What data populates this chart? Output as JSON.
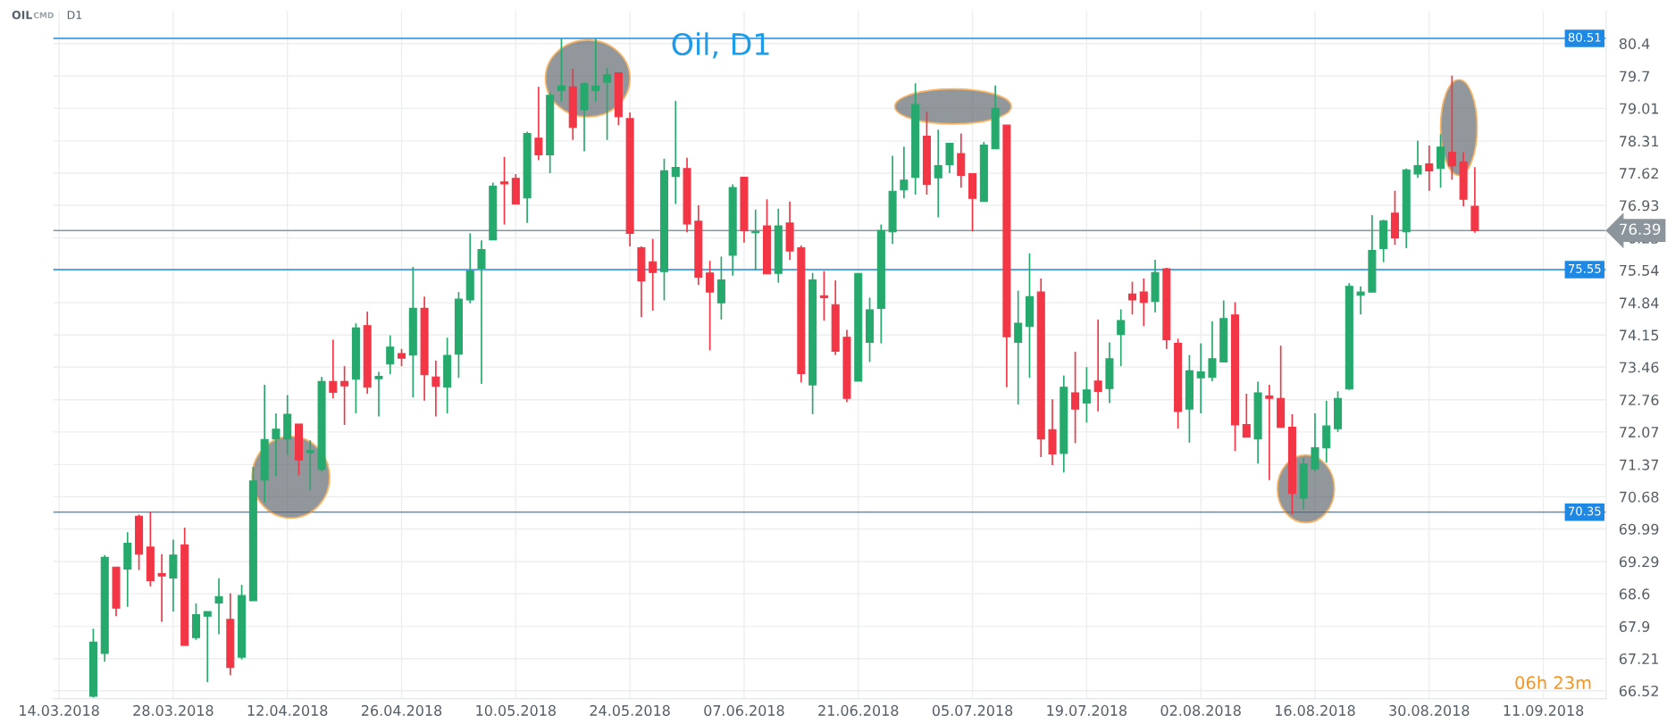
{
  "chart_data": {
    "type": "candlestick",
    "title": "Oil, D1",
    "annotations": [
      "OIL",
      "CMD",
      "D1",
      "06h 23m"
    ],
    "categories": [
      "14.03.2018",
      null,
      null,
      null,
      null,
      null,
      null,
      null,
      null,
      null,
      "28.03.2018",
      null,
      null,
      null,
      null,
      null,
      null,
      null,
      null,
      null,
      "12.04.2018",
      null,
      null,
      null,
      null,
      null,
      null,
      null,
      null,
      null,
      "26.04.2018",
      null,
      null,
      null,
      null,
      null,
      null,
      null,
      null,
      null,
      "10.05.2018",
      null,
      null,
      null,
      null,
      null,
      null,
      null,
      null,
      null,
      "24.05.2018",
      null,
      null,
      null,
      null,
      null,
      null,
      null,
      null,
      null,
      "07.06.2018",
      null,
      null,
      null,
      null,
      null,
      null,
      null,
      null,
      null,
      "21.06.2018",
      null,
      null,
      null,
      null,
      null,
      null,
      null,
      null,
      null,
      "05.07.2018",
      null,
      null,
      null,
      null,
      null,
      null,
      null,
      null,
      null,
      "19.07.2018",
      null,
      null,
      null,
      null,
      null,
      null,
      null,
      null,
      null,
      "02.08.2018",
      null,
      null,
      null,
      null,
      null,
      null,
      null,
      null,
      null,
      "16.08.2018",
      null,
      null,
      null,
      null,
      null,
      null,
      null,
      null,
      null,
      "30.08.2018",
      null,
      null,
      null,
      null,
      null,
      null,
      null,
      null,
      null,
      "11.09.2018",
      null,
      null,
      null,
      null,
      null
    ],
    "ohlc": [
      null,
      null,
      null,
      [
        66.4,
        67.85,
        66.37,
        67.56
      ],
      [
        67.32,
        69.43,
        67.14,
        69.38
      ],
      [
        69.17,
        69.17,
        68.12,
        68.29
      ],
      [
        69.13,
        69.92,
        68.32,
        69.68
      ],
      [
        70.26,
        70.3,
        69.11,
        69.45
      ],
      [
        69.6,
        70.36,
        68.76,
        68.88
      ],
      [
        69.03,
        69.45,
        68.0,
        68.98
      ],
      [
        68.94,
        69.76,
        68.22,
        69.43
      ],
      [
        69.65,
        70.02,
        67.49,
        67.49
      ],
      [
        67.66,
        68.39,
        67.61,
        68.15
      ],
      [
        68.12,
        68.22,
        66.7,
        68.22
      ],
      [
        68.4,
        68.93,
        67.73,
        68.54
      ],
      [
        68.05,
        68.61,
        66.85,
        67.02
      ],
      [
        67.24,
        68.79,
        67.19,
        68.56
      ],
      [
        68.45,
        71.32,
        68.45,
        71.02
      ],
      [
        71.04,
        73.08,
        70.56,
        71.91
      ],
      [
        71.92,
        72.47,
        71.12,
        72.13
      ],
      [
        71.92,
        72.86,
        71.58,
        72.45
      ],
      [
        72.24,
        72.24,
        71.14,
        71.47
      ],
      [
        71.63,
        71.89,
        70.82,
        71.67
      ],
      [
        71.27,
        73.25,
        71.22,
        73.15
      ],
      [
        73.15,
        74.05,
        72.79,
        72.92
      ],
      [
        73.15,
        73.48,
        72.22,
        73.06
      ],
      [
        73.2,
        74.4,
        72.47,
        74.3
      ],
      [
        74.35,
        74.65,
        72.89,
        73.03
      ],
      [
        73.21,
        73.36,
        72.4,
        73.26
      ],
      [
        73.53,
        74.14,
        73.31,
        73.89
      ],
      [
        73.75,
        73.85,
        73.48,
        73.65
      ],
      [
        73.72,
        75.61,
        72.81,
        74.72
      ],
      [
        74.72,
        74.97,
        72.74,
        73.3
      ],
      [
        73.25,
        73.6,
        72.4,
        73.05
      ],
      [
        73.03,
        74.09,
        72.47,
        73.71
      ],
      [
        73.74,
        75.07,
        73.23,
        74.92
      ],
      [
        74.9,
        76.33,
        74.83,
        75.52
      ],
      [
        75.58,
        76.18,
        73.1,
        75.98
      ],
      [
        76.19,
        77.42,
        76.19,
        77.34
      ],
      [
        77.43,
        77.97,
        76.52,
        77.39
      ],
      [
        77.51,
        77.6,
        76.96,
        76.96
      ],
      [
        77.09,
        78.51,
        76.55,
        78.47
      ],
      [
        78.37,
        79.47,
        77.9,
        78.01
      ],
      [
        78.01,
        79.35,
        77.62,
        79.29
      ],
      [
        79.39,
        80.51,
        79.15,
        79.49
      ],
      [
        79.47,
        79.86,
        78.33,
        78.6
      ],
      [
        78.98,
        79.57,
        78.09,
        79.54
      ],
      [
        79.39,
        80.51,
        79.15,
        79.49
      ],
      [
        79.57,
        79.88,
        78.33,
        79.73
      ],
      [
        79.77,
        79.77,
        78.65,
        78.83
      ],
      [
        78.79,
        78.92,
        76.05,
        76.33
      ],
      [
        76.02,
        76.05,
        74.53,
        75.31
      ],
      [
        75.72,
        76.21,
        74.67,
        75.49
      ],
      [
        75.51,
        77.93,
        74.89,
        77.67
      ],
      [
        77.55,
        79.17,
        76.96,
        77.74
      ],
      [
        77.72,
        77.95,
        76.35,
        76.53
      ],
      [
        76.59,
        76.93,
        75.22,
        75.39
      ],
      [
        75.48,
        75.74,
        73.82,
        75.07
      ],
      [
        74.84,
        75.83,
        74.48,
        75.33
      ],
      [
        75.86,
        77.38,
        75.42,
        77.31
      ],
      [
        77.53,
        77.53,
        76.13,
        76.39
      ],
      [
        76.34,
        76.84,
        75.54,
        76.37
      ],
      [
        76.49,
        77.06,
        75.46,
        75.46
      ],
      [
        75.47,
        76.86,
        75.27,
        76.49
      ],
      [
        76.55,
        77.01,
        75.76,
        75.95
      ],
      [
        76.02,
        76.07,
        73.13,
        73.32
      ],
      [
        73.08,
        75.48,
        72.45,
        75.33
      ],
      [
        74.99,
        75.52,
        74.46,
        74.95
      ],
      [
        74.8,
        75.32,
        73.72,
        73.8
      ],
      [
        74.1,
        74.26,
        72.71,
        72.79
      ],
      [
        73.16,
        75.47,
        73.16,
        75.47
      ],
      [
        73.99,
        74.95,
        73.57,
        74.69
      ],
      [
        74.72,
        76.52,
        73.97,
        76.39
      ],
      [
        76.36,
        77.99,
        76.1,
        77.23
      ],
      [
        77.26,
        78.19,
        77.08,
        77.47
      ],
      [
        77.53,
        79.55,
        77.16,
        79.09
      ],
      [
        78.41,
        78.94,
        77.16,
        77.38
      ],
      [
        77.52,
        78.55,
        76.67,
        77.78
      ],
      [
        77.8,
        78.26,
        77.62,
        78.26
      ],
      [
        78.04,
        78.47,
        77.31,
        77.57
      ],
      [
        77.61,
        77.61,
        76.37,
        77.08
      ],
      [
        77.01,
        78.29,
        77.01,
        78.22
      ],
      [
        78.14,
        79.5,
        78.14,
        79.01
      ],
      [
        78.65,
        78.65,
        73.03,
        74.11
      ],
      [
        73.99,
        75.1,
        72.66,
        74.4
      ],
      [
        74.33,
        75.9,
        73.23,
        74.97
      ],
      [
        75.07,
        75.36,
        71.53,
        71.92
      ],
      [
        72.12,
        72.77,
        71.36,
        71.6
      ],
      [
        71.61,
        73.28,
        71.2,
        73.03
      ],
      [
        72.91,
        73.79,
        71.83,
        72.56
      ],
      [
        72.69,
        73.46,
        72.27,
        72.97
      ],
      [
        73.16,
        74.48,
        72.51,
        72.94
      ],
      [
        73.0,
        73.99,
        72.69,
        73.64
      ],
      [
        74.16,
        74.7,
        73.48,
        74.46
      ],
      [
        75.03,
        75.29,
        74.59,
        74.9
      ],
      [
        75.07,
        75.36,
        74.34,
        74.85
      ],
      [
        74.87,
        75.76,
        74.63,
        75.49
      ],
      [
        75.57,
        75.59,
        73.85,
        74.05
      ],
      [
        73.97,
        74.07,
        72.14,
        72.51
      ],
      [
        72.56,
        73.72,
        71.84,
        73.38
      ],
      [
        73.23,
        73.97,
        72.47,
        73.36
      ],
      [
        73.24,
        74.44,
        73.16,
        73.64
      ],
      [
        73.57,
        74.89,
        73.57,
        74.5
      ],
      [
        74.58,
        74.85,
        71.66,
        72.22
      ],
      [
        72.23,
        72.89,
        71.96,
        71.96
      ],
      [
        71.92,
        73.15,
        71.39,
        72.91
      ],
      [
        72.84,
        73.08,
        71.04,
        72.79
      ],
      [
        72.79,
        73.92,
        72.17,
        72.17
      ],
      [
        72.17,
        72.45,
        70.3,
        70.75
      ],
      [
        70.65,
        71.51,
        70.41,
        71.38
      ],
      [
        71.28,
        72.47,
        71.22,
        71.73
      ],
      [
        71.73,
        72.74,
        71.41,
        72.2
      ],
      [
        72.14,
        72.94,
        72.07,
        72.79
      ],
      [
        72.99,
        75.26,
        72.97,
        75.19
      ],
      [
        75.0,
        75.19,
        74.59,
        75.07
      ],
      [
        75.07,
        76.72,
        75.07,
        75.96
      ],
      [
        76.0,
        76.62,
        75.71,
        76.6
      ],
      [
        76.76,
        77.24,
        76.08,
        76.23
      ],
      [
        76.36,
        77.72,
        76.01,
        77.69
      ],
      [
        77.6,
        78.32,
        77.52,
        77.78
      ],
      [
        77.82,
        78.21,
        77.24,
        77.67
      ],
      [
        77.72,
        78.45,
        77.31,
        78.18
      ],
      [
        78.07,
        79.71,
        77.48,
        77.78
      ],
      [
        77.86,
        78.07,
        76.91,
        77.06
      ],
      [
        76.91,
        77.75,
        76.34,
        76.39
      ],
      null,
      null,
      null,
      null,
      null,
      null,
      null,
      null,
      null,
      null,
      null
    ],
    "ylim": [
      66.35,
      81.1
    ],
    "yticks": [
      66.52,
      67.21,
      67.9,
      68.6,
      69.29,
      69.99,
      70.68,
      71.37,
      72.07,
      72.76,
      73.46,
      74.15,
      74.84,
      75.54,
      76.23,
      76.93,
      77.62,
      78.31,
      79.01,
      79.7,
      80.4
    ],
    "ref_lines": [
      {
        "axis": "y",
        "value": 80.51,
        "label": "80.51",
        "color": "#1e88e5"
      },
      {
        "axis": "y",
        "value": 75.55,
        "label": "75.55",
        "color": "#1e88e5"
      },
      {
        "axis": "y",
        "value": 70.35,
        "label": "70.35",
        "color": "#1e88e5"
      },
      {
        "axis": "y",
        "value": 76.39,
        "label": "76.39",
        "color": "#8c959c"
      }
    ],
    "grid": true,
    "legend": false
  }
}
